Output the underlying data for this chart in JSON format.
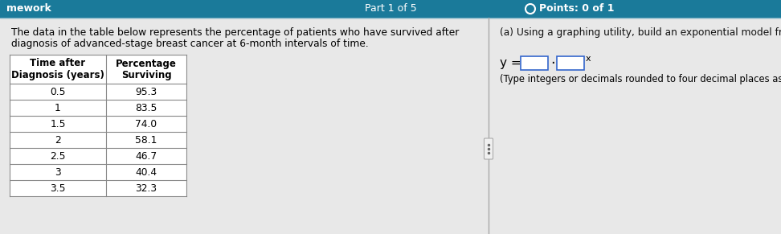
{
  "title_text": "Part 1 of 5",
  "points_text": "Points: 0 of 1",
  "left_paragraph_line1": "The data in the table below represents the percentage of patients who have survived after",
  "left_paragraph_line2": "diagnosis of advanced-stage breast cancer at 6-month intervals of time.",
  "right_title": "(a) Using a graphing utility, build an exponential model from the data.",
  "hint_text": "(Type integers or decimals rounded to four decimal places as needed.)",
  "table_header_col1_line1": "Time after",
  "table_header_col1_line2": "Diagnosis (years)",
  "table_header_col2_line1": "Percentage",
  "table_header_col2_line2": "Surviving",
  "table_data": [
    [
      "0.5",
      "95.3"
    ],
    [
      "1",
      "83.5"
    ],
    [
      "1.5",
      "74.0"
    ],
    [
      "2",
      "58.1"
    ],
    [
      "2.5",
      "46.7"
    ],
    [
      "3",
      "40.4"
    ],
    [
      "3.5",
      "32.3"
    ]
  ],
  "top_bar_bg": "#1a7a9a",
  "top_bar_bottom_gradient": "#2596be",
  "top_text_color": "#ffffff",
  "content_bg": "#e8e8e8",
  "table_bg": "#ffffff",
  "table_border": "#888888",
  "text_color": "#000000",
  "divider_color": "#aaaaaa",
  "input_box_color": "#ffffff",
  "input_box_border": "#3366cc",
  "points_circle_color": "#ffffff",
  "right_title_color": "#111111"
}
